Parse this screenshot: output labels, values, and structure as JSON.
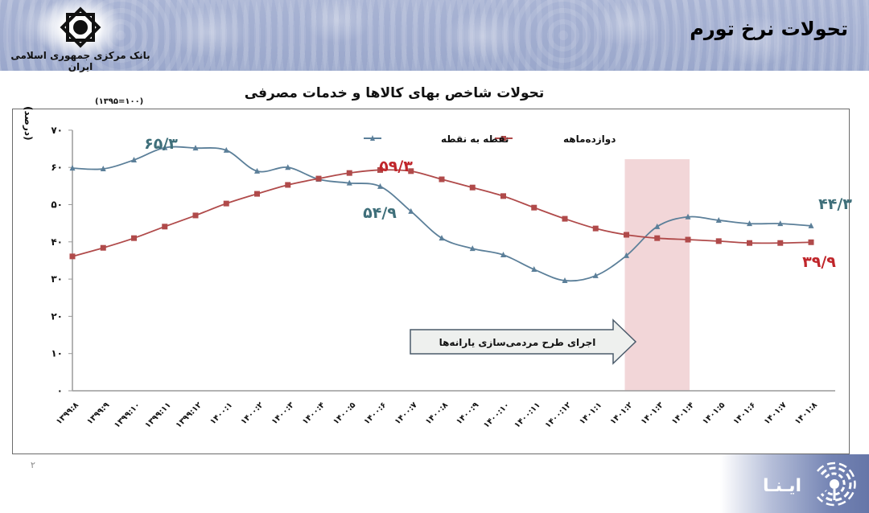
{
  "header": {
    "page_title": "تحولات نرخ تورم",
    "bank_name": "بانک مرکزی جمهوری اسلامی ایران",
    "bank_logo": "central-bank-logo-icon"
  },
  "chart": {
    "title": "تحولات شاخص بهای کالاها و خدمات مصرفی",
    "base_note": "(۱۳۹۵=۱۰۰)",
    "y_unit": "(درصد)",
    "legend": {
      "series_a": "دوازده‌ماهه",
      "series_b": "نقطه به نقطه"
    },
    "annotations": {
      "blue_peak": "۶۵/۳",
      "red_peak": "۵۹/۳",
      "blue_mid": "۵۴/۹",
      "blue_end": "۴۴/۳",
      "red_end": "۳۹/۹"
    },
    "arrow_label": "اجرای طرح مردمی‌سازی یارانه‌ها",
    "y_ticks": [
      "۰",
      "۱۰",
      "۲۰",
      "۳۰",
      "۴۰",
      "۵۰",
      "۶۰",
      "۷۰"
    ],
    "x_ticks": [
      "۱۳۹۹:۸",
      "۱۳۹۹:۹",
      "۱۳۹۹:۱۰",
      "۱۳۹۹:۱۱",
      "۱۳۹۹:۱۲",
      "۱۴۰۰:۱",
      "۱۴۰۰:۲",
      "۱۴۰۰:۳",
      "۱۴۰۰:۴",
      "۱۴۰۰:۵",
      "۱۴۰۰:۶",
      "۱۴۰۰:۷",
      "۱۴۰۰:۸",
      "۱۴۰۰:۹",
      "۱۴۰۰:۱۰",
      "۱۴۰۰:۱۱",
      "۱۴۰۰:۱۲",
      "۱۴۰۱:۱",
      "۱۴۰۱:۲",
      "۱۴۰۱:۳",
      "۱۴۰۱:۴",
      "۱۴۰۱:۵",
      "۱۴۰۱:۶",
      "۱۴۰۱:۷",
      "۱۴۰۱:۸"
    ]
  },
  "colors": {
    "point_to_point": "#5b7f99",
    "twelve_month": "#b04a4a",
    "shade": "#f2d6d8",
    "annot_blue": "#3f6f7a",
    "annot_red": "#c0262b",
    "header_bg": "#a3afd0"
  },
  "footer": {
    "page_number": "۲",
    "brand": "ایـنـا",
    "brand_icon": "ina-broadcast-icon"
  },
  "chart_data": {
    "type": "line",
    "title": "تحولات شاخص بهای کالاها و خدمات مصرفی",
    "subtitle": "(۱۳۹۵=۱۰۰)",
    "xlabel": "",
    "ylabel": "(درصد)",
    "ylim": [
      0,
      70
    ],
    "grid": false,
    "legend_position": "top",
    "categories": [
      "1399:8",
      "1399:9",
      "1399:10",
      "1399:11",
      "1399:12",
      "1400:1",
      "1400:2",
      "1400:3",
      "1400:4",
      "1400:5",
      "1400:6",
      "1400:7",
      "1400:8",
      "1400:9",
      "1400:10",
      "1400:11",
      "1400:12",
      "1401:1",
      "1401:2",
      "1401:3",
      "1401:4",
      "1401:5",
      "1401:6",
      "1401:7",
      "1401:8"
    ],
    "series": [
      {
        "name": "نقطه به نقطه",
        "marker": "triangle",
        "color": "#5b7f99",
        "values": [
          59.8,
          59.6,
          62.0,
          65.3,
          65.2,
          64.6,
          59.0,
          60.0,
          56.8,
          55.8,
          54.9,
          48.2,
          41.0,
          38.2,
          36.5,
          32.6,
          29.6,
          30.9,
          36.3,
          44.1,
          46.7,
          45.8,
          44.9,
          44.9,
          44.3
        ]
      },
      {
        "name": "دوازده‌ماهه",
        "marker": "square",
        "color": "#b04a4a",
        "values": [
          36.1,
          38.4,
          41.0,
          44.1,
          47.1,
          50.3,
          52.9,
          55.3,
          57.0,
          58.5,
          59.3,
          59.0,
          56.8,
          54.6,
          52.3,
          49.2,
          46.2,
          43.6,
          41.9,
          41.0,
          40.6,
          40.2,
          39.7,
          39.7,
          39.9
        ]
      }
    ],
    "annotations": [
      {
        "text": "۶۵/۳",
        "x": "1399:11",
        "series": "نقطه به نقطه"
      },
      {
        "text": "۵۴/۹",
        "x": "1400:6",
        "series": "نقطه به نقطه"
      },
      {
        "text": "۵۹/۳",
        "x": "1400:6",
        "series": "دوازده‌ماهه"
      },
      {
        "text": "۴۴/۳",
        "x": "1401:8",
        "series": "نقطه به نقطه"
      },
      {
        "text": "۳۹/۹",
        "x": "1401:8",
        "series": "دوازده‌ماهه"
      },
      {
        "text": "اجرای طرح مردمی‌سازی یارانه‌ها",
        "type": "arrow",
        "points_to": "1401:2"
      }
    ],
    "shaded_region": {
      "from": "1401:2",
      "to": "1401:4"
    }
  }
}
